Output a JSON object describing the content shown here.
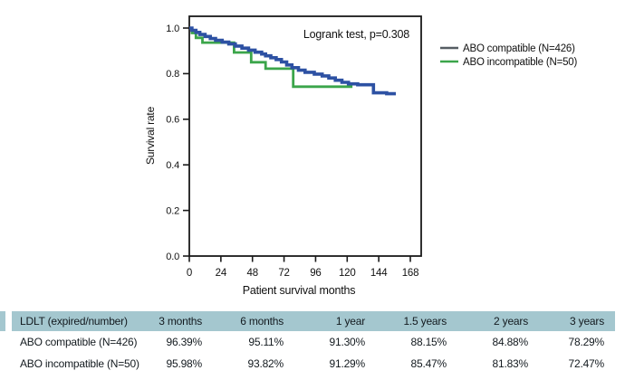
{
  "chart": {
    "annotation": "Logrank test, p=0.308",
    "ylabel": "Survival rate",
    "xlabel": "Patient survival months",
    "legend": [
      {
        "label": "ABO compatible (N=426)",
        "swatch_color": "#565d63"
      },
      {
        "label": "ABO incompatible (N=50)",
        "swatch_color": "#3ba54a"
      }
    ]
  },
  "chart_data": {
    "type": "line",
    "variant": "kaplan-meier-step",
    "title": "",
    "xlabel": "Patient survival months",
    "ylabel": "Survival rate",
    "xlim": [
      0,
      176
    ],
    "ylim": [
      0.0,
      1.05
    ],
    "x_ticks": [
      0,
      24,
      48,
      72,
      96,
      120,
      144,
      168
    ],
    "y_tick_labels": [
      "0.0",
      "0.2",
      "0.4",
      "0.6",
      "0.8",
      "1.0"
    ],
    "grid": false,
    "legend_position": "outside-right",
    "annotation": "Logrank test, p=0.308",
    "series": [
      {
        "name": "ABO compatible (N=426)",
        "color": "#2d51a3",
        "legend_swatch_color": "#565d63",
        "line_width": 3.6,
        "end_x": 157,
        "points": [
          [
            0,
            1.0
          ],
          [
            2,
            0.99
          ],
          [
            5,
            0.981
          ],
          [
            8,
            0.972
          ],
          [
            12,
            0.963
          ],
          [
            16,
            0.954
          ],
          [
            20,
            0.946
          ],
          [
            25,
            0.938
          ],
          [
            30,
            0.93
          ],
          [
            35,
            0.921
          ],
          [
            40,
            0.912
          ],
          [
            45,
            0.903
          ],
          [
            50,
            0.894
          ],
          [
            55,
            0.886
          ],
          [
            58,
            0.878
          ],
          [
            62,
            0.87
          ],
          [
            66,
            0.862
          ],
          [
            70,
            0.851
          ],
          [
            74,
            0.838
          ],
          [
            78,
            0.826
          ],
          [
            83,
            0.815
          ],
          [
            88,
            0.806
          ],
          [
            95,
            0.798
          ],
          [
            101,
            0.79
          ],
          [
            106,
            0.781
          ],
          [
            111,
            0.771
          ],
          [
            116,
            0.762
          ],
          [
            121,
            0.755
          ],
          [
            128,
            0.751
          ],
          [
            140,
            0.716
          ],
          [
            150,
            0.712
          ]
        ]
      },
      {
        "name": "ABO incompatible (N=50)",
        "color": "#3ba54a",
        "legend_swatch_color": "#3ba54a",
        "line_width": 2.8,
        "end_x": 124,
        "points": [
          [
            0,
            1.0
          ],
          [
            2,
            0.978
          ],
          [
            5,
            0.957
          ],
          [
            10,
            0.936
          ],
          [
            34,
            0.893
          ],
          [
            47,
            0.85
          ],
          [
            58,
            0.822
          ],
          [
            79,
            0.743
          ]
        ]
      }
    ]
  },
  "table": {
    "header_bg": "#a4c7cf",
    "headers": [
      "LDLT (expired/number)",
      "3 months",
      "6 months",
      "1 year",
      "1.5 years",
      "2 years",
      "3 years"
    ],
    "rows": [
      {
        "label": "ABO compatible (N=426)",
        "values": [
          "96.39%",
          "95.11%",
          "91.30%",
          "88.15%",
          "84.88%",
          "78.29%"
        ]
      },
      {
        "label": "ABO incompatible (N=50)",
        "values": [
          "95.98%",
          "93.82%",
          "91.29%",
          "85.47%",
          "81.83%",
          "72.47%"
        ]
      }
    ]
  }
}
